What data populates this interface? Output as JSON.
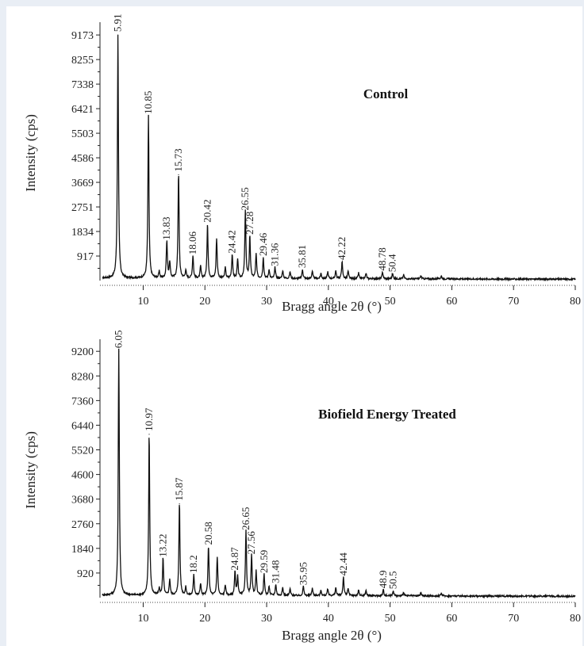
{
  "chart_data": [
    {
      "type": "line",
      "title": "Control",
      "xlabel": "Bragg angle 2θ (°)",
      "ylabel": "Intensity (cps)",
      "xlim": [
        3,
        80
      ],
      "ylim": [
        0,
        9650
      ],
      "x_ticks": [
        10,
        20,
        30,
        40,
        50,
        60,
        70,
        80
      ],
      "y_ticks": [
        917,
        1834,
        2751,
        3669,
        4586,
        5503,
        6421,
        7338,
        8255,
        9173
      ],
      "baseline": 80,
      "peaks": [
        {
          "x": 5.91,
          "y": 9173,
          "label": "5.91"
        },
        {
          "x": 10.85,
          "y": 6100,
          "label": "10.85"
        },
        {
          "x": 13.83,
          "y": 1400,
          "label": "13.83"
        },
        {
          "x": 15.73,
          "y": 3950,
          "label": "15.73"
        },
        {
          "x": 18.06,
          "y": 850,
          "label": "18.06"
        },
        {
          "x": 20.42,
          "y": 2050,
          "label": "20.42"
        },
        {
          "x": 21.9,
          "y": 1500,
          "label": ""
        },
        {
          "x": 24.42,
          "y": 900,
          "label": "24.42"
        },
        {
          "x": 26.55,
          "y": 2500,
          "label": "26.55"
        },
        {
          "x": 27.28,
          "y": 1600,
          "label": "27.28"
        },
        {
          "x": 29.46,
          "y": 800,
          "label": "29.46"
        },
        {
          "x": 31.36,
          "y": 420,
          "label": "31.36"
        },
        {
          "x": 35.81,
          "y": 350,
          "label": "35.81"
        },
        {
          "x": 42.22,
          "y": 650,
          "label": "42.22"
        },
        {
          "x": 48.78,
          "y": 250,
          "label": "48.78"
        },
        {
          "x": 50.4,
          "y": 200,
          "label": "50.4"
        }
      ]
    },
    {
      "type": "line",
      "title": "Biofield Energy Treated",
      "xlabel": "Bragg angle 2θ (°)",
      "ylabel": "Intensity (cps)",
      "xlim": [
        3,
        80
      ],
      "ylim": [
        0,
        9650
      ],
      "x_ticks": [
        10,
        20,
        30,
        40,
        50,
        60,
        70,
        80
      ],
      "y_ticks": [
        920,
        1840,
        2760,
        3680,
        4600,
        5520,
        6440,
        7360,
        8280,
        9200
      ],
      "baseline": 80,
      "peaks": [
        {
          "x": 6.05,
          "y": 9200,
          "label": "6.05"
        },
        {
          "x": 10.97,
          "y": 6100,
          "label": "10.97"
        },
        {
          "x": 13.22,
          "y": 1400,
          "label": "13.22"
        },
        {
          "x": 15.87,
          "y": 3500,
          "label": "15.87"
        },
        {
          "x": 18.2,
          "y": 800,
          "label": "18.2"
        },
        {
          "x": 20.58,
          "y": 1850,
          "label": "20.58"
        },
        {
          "x": 22.0,
          "y": 1450,
          "label": ""
        },
        {
          "x": 24.87,
          "y": 900,
          "label": "24.87"
        },
        {
          "x": 26.65,
          "y": 2400,
          "label": "26.65"
        },
        {
          "x": 27.56,
          "y": 1500,
          "label": "27.56"
        },
        {
          "x": 29.59,
          "y": 800,
          "label": "29.59"
        },
        {
          "x": 31.48,
          "y": 420,
          "label": "31.48"
        },
        {
          "x": 35.95,
          "y": 350,
          "label": "35.95"
        },
        {
          "x": 42.44,
          "y": 700,
          "label": "42.44"
        },
        {
          "x": 48.9,
          "y": 230,
          "label": "48.9"
        },
        {
          "x": 50.5,
          "y": 200,
          "label": "50.5"
        }
      ]
    }
  ]
}
